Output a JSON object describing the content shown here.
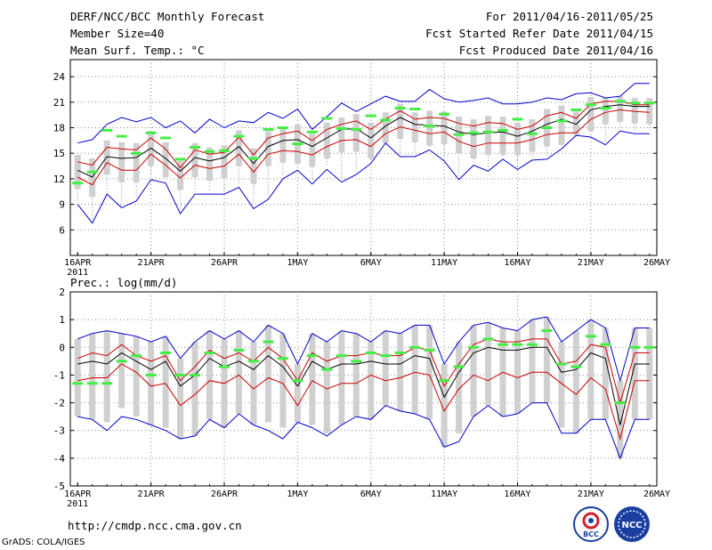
{
  "header": {
    "title": "DERF/NCC/BCC Monthly Forecast",
    "member_size": "Member Size=40",
    "top_variable": "Mean Surf. Temp.: °C",
    "forecast_period": "For 2011/04/16-2011/05/25",
    "fcst_started": "Fcst Started Refer Date 2011/04/15",
    "fcst_produced": "Fcst Produced Date 2011/04/16"
  },
  "footer": {
    "url": "http://cmdp.ncc.cma.gov.cn",
    "credit": "GrADS: COLA/IGES",
    "logo_left_text": "BCC",
    "logo_right_text": "NCC"
  },
  "colors": {
    "envelope": "#0000cc",
    "spread": "#cc0000",
    "mean": "#000000",
    "box": "#d0d0d0",
    "member_mark": "#44ee44",
    "grid": "#888888"
  },
  "chart_data": [
    {
      "type": "line",
      "title": "Mean Surf. Temp.: °C",
      "x_tick_labels": [
        "16APR",
        "21APR",
        "26APR",
        "1MAY",
        "6MAY",
        "11MAY",
        "16MAY",
        "21MAY",
        "26MAY"
      ],
      "year_label": "2011",
      "y_ticks": [
        6,
        9,
        12,
        15,
        18,
        21,
        24
      ],
      "ylim": [
        3,
        26
      ],
      "days": 40,
      "series": [
        {
          "name": "max",
          "values": [
            16.2,
            16.6,
            18.4,
            19.2,
            18.7,
            19.2,
            18.0,
            18.8,
            17.4,
            19.0,
            18.0,
            18.8,
            18.6,
            19.8,
            19.1,
            20.2,
            17.8,
            19.3,
            20.9,
            19.9,
            20.8,
            21.7,
            21.1,
            21.1,
            22.5,
            21.4,
            21.0,
            21.2,
            21.5,
            20.8,
            20.8,
            21.0,
            21.5,
            21.3,
            22.0,
            22.1,
            21.5,
            21.7,
            23.2,
            23.2
          ]
        },
        {
          "name": "mean_plus",
          "values": [
            14.0,
            13.6,
            15.7,
            15.5,
            15.4,
            16.8,
            15.5,
            13.3,
            15.4,
            14.9,
            15.1,
            16.9,
            14.8,
            16.8,
            17.3,
            17.6,
            16.5,
            17.8,
            18.4,
            18.8,
            17.8,
            19.0,
            20.0,
            19.0,
            19.2,
            19.1,
            18.5,
            18.2,
            18.6,
            18.5,
            17.8,
            18.2,
            19.4,
            19.8,
            19.1,
            20.8,
            21.1,
            21.1,
            20.7,
            20.7
          ]
        },
        {
          "name": "mean",
          "values": [
            13.0,
            12.2,
            14.6,
            14.4,
            14.5,
            15.6,
            14.4,
            12.9,
            14.5,
            14.1,
            14.5,
            15.8,
            13.8,
            15.8,
            16.5,
            16.6,
            15.8,
            16.8,
            17.8,
            17.9,
            16.8,
            18.2,
            19.2,
            18.4,
            18.3,
            18.2,
            17.5,
            17.2,
            17.4,
            17.5,
            17.0,
            17.6,
            18.4,
            19.0,
            18.4,
            20.1,
            20.5,
            20.7,
            20.5,
            20.5
          ]
        },
        {
          "name": "mean_minus",
          "values": [
            12.2,
            11.3,
            13.9,
            13.0,
            13.0,
            14.9,
            13.6,
            12.1,
            13.6,
            13.2,
            13.5,
            14.9,
            12.8,
            14.9,
            15.3,
            15.2,
            14.8,
            15.8,
            16.5,
            16.6,
            15.8,
            17.3,
            18.1,
            17.7,
            17.3,
            17.5,
            16.4,
            15.8,
            16.2,
            16.2,
            16.2,
            16.6,
            17.2,
            17.4,
            17.4,
            19.0,
            19.8,
            20.1,
            19.9,
            19.8
          ]
        },
        {
          "name": "min",
          "values": [
            9.0,
            6.8,
            10.2,
            8.6,
            9.4,
            11.9,
            11.5,
            7.9,
            10.2,
            10.2,
            10.2,
            11.0,
            8.5,
            9.6,
            12.0,
            13.0,
            11.4,
            13.1,
            11.6,
            12.5,
            13.8,
            16.2,
            14.6,
            14.6,
            15.4,
            14.1,
            11.9,
            13.6,
            12.9,
            14.3,
            13.1,
            14.2,
            14.3,
            15.5,
            17.1,
            16.9,
            16.0,
            17.6,
            17.3,
            17.3
          ]
        },
        {
          "name": "member",
          "values": [
            11.5,
            12.8,
            17.7,
            17.0,
            15.0,
            17.4,
            16.8,
            14.3,
            15.7,
            15.2,
            15.3,
            17.0,
            14.4,
            17.8,
            18.0,
            16.1,
            17.5,
            19.1,
            17.9,
            17.8,
            19.4,
            18.9,
            20.3,
            20.2,
            18.2,
            19.6,
            17.2,
            17.4,
            17.5,
            17.7,
            19.0,
            17.3,
            18.0,
            18.8,
            20.1,
            20.7,
            20.3,
            21.1,
            20.9,
            20.9
          ]
        }
      ]
    },
    {
      "type": "line",
      "title": "Prec.: log(mm/d)",
      "x_tick_labels": [
        "16APR",
        "21APR",
        "26APR",
        "1MAY",
        "6MAY",
        "11MAY",
        "16MAY",
        "21MAY",
        "26MAY"
      ],
      "year_label": "2011",
      "y_ticks": [
        -5,
        -4,
        -3,
        -2,
        -1,
        0,
        1,
        2
      ],
      "ylim": [
        -5,
        2
      ],
      "days": 40,
      "series": [
        {
          "name": "max",
          "values": [
            0.3,
            0.5,
            0.6,
            0.5,
            0.4,
            0.2,
            0.4,
            -0.4,
            0.2,
            0.6,
            0.3,
            0.6,
            0.2,
            0.8,
            0.5,
            -0.6,
            0.5,
            0.2,
            0.6,
            0.5,
            0.2,
            0.6,
            0.5,
            0.8,
            0.8,
            -0.6,
            0.2,
            0.8,
            0.9,
            0.7,
            0.6,
            1.0,
            1.1,
            0.2,
            0.6,
            1.0,
            0.7,
            -1.2,
            0.7,
            0.7
          ]
        },
        {
          "name": "mean_plus",
          "values": [
            -0.4,
            -0.2,
            -0.3,
            0.1,
            -0.3,
            -0.5,
            -0.3,
            -1.2,
            -0.7,
            -0.1,
            -0.4,
            -0.2,
            -0.5,
            0.0,
            -0.4,
            -1.2,
            -0.2,
            -0.5,
            -0.3,
            -0.3,
            -0.2,
            -0.3,
            -0.3,
            0.0,
            -0.1,
            -1.4,
            -0.6,
            0.1,
            0.3,
            0.2,
            0.2,
            0.3,
            0.3,
            -0.6,
            -0.5,
            0.1,
            0.0,
            -2.0,
            -0.2,
            -0.2
          ]
        },
        {
          "name": "mean",
          "values": [
            -0.6,
            -0.5,
            -0.6,
            -0.2,
            -0.5,
            -0.8,
            -0.5,
            -1.4,
            -1.0,
            -0.4,
            -0.7,
            -0.5,
            -0.8,
            -0.3,
            -0.7,
            -1.4,
            -0.5,
            -0.8,
            -0.6,
            -0.6,
            -0.5,
            -0.6,
            -0.6,
            -0.3,
            -0.4,
            -1.8,
            -0.9,
            -0.2,
            0.0,
            -0.1,
            -0.1,
            0.0,
            0.0,
            -0.9,
            -0.8,
            -0.2,
            -0.4,
            -2.8,
            -0.6,
            -0.6
          ]
        },
        {
          "name": "mean_minus",
          "values": [
            -1.2,
            -1.1,
            -1.1,
            -0.6,
            -0.9,
            -1.4,
            -1.3,
            -2.1,
            -1.7,
            -1.2,
            -1.3,
            -1.0,
            -1.5,
            -1.1,
            -1.3,
            -2.1,
            -1.2,
            -1.5,
            -1.3,
            -1.3,
            -1.0,
            -1.2,
            -1.1,
            -0.9,
            -1.0,
            -2.3,
            -1.5,
            -1.0,
            -1.2,
            -0.9,
            -1.1,
            -0.9,
            -0.9,
            -1.3,
            -1.7,
            -1.1,
            -1.5,
            -3.3,
            -1.2,
            -1.2
          ]
        },
        {
          "name": "min",
          "values": [
            -2.5,
            -2.6,
            -3.0,
            -2.5,
            -2.6,
            -2.8,
            -3.0,
            -3.3,
            -3.2,
            -2.6,
            -2.9,
            -2.4,
            -2.8,
            -3.0,
            -3.3,
            -2.7,
            -2.9,
            -3.2,
            -2.8,
            -2.5,
            -2.6,
            -2.1,
            -2.3,
            -2.4,
            -2.6,
            -3.6,
            -3.4,
            -2.5,
            -2.1,
            -2.5,
            -2.4,
            -2.0,
            -2.0,
            -3.1,
            -3.1,
            -2.6,
            -2.6,
            -4.0,
            -2.6,
            -2.6
          ]
        },
        {
          "name": "member",
          "values": [
            -1.3,
            -1.3,
            -1.3,
            -0.5,
            -0.3,
            -1.0,
            -0.2,
            -1.0,
            -1.0,
            -0.2,
            -0.7,
            -0.1,
            -0.5,
            0.2,
            -0.4,
            -1.2,
            -0.3,
            -0.8,
            -0.3,
            -0.5,
            -0.2,
            -0.3,
            -0.2,
            0.0,
            -0.1,
            -1.2,
            -0.7,
            0.0,
            0.3,
            0.1,
            0.1,
            0.1,
            0.6,
            -0.6,
            -0.7,
            0.4,
            0.1,
            -2.0,
            0.0,
            0.0
          ]
        }
      ]
    }
  ]
}
